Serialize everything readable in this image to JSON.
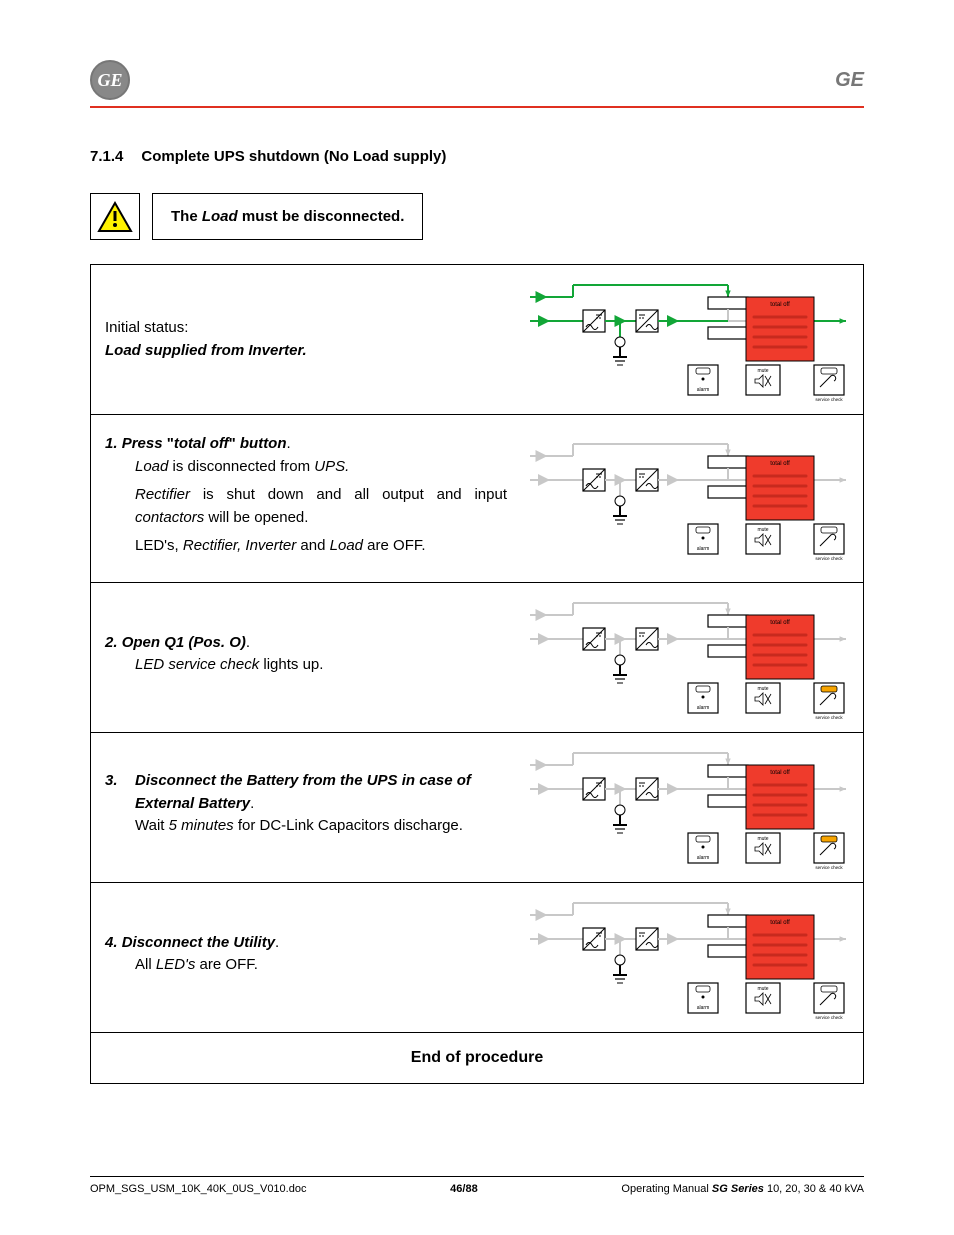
{
  "header": {
    "logo_text": "GE",
    "brand_label": "GE"
  },
  "section": {
    "number": "7.1.4",
    "title": "Complete UPS shutdown (No Load supply)"
  },
  "warning": {
    "pre": "The ",
    "load": "Load",
    "post": " must be disconnected."
  },
  "initial": {
    "line1": "Initial status:",
    "line2": "Load supplied from Inverter."
  },
  "steps": [
    {
      "num": "1.",
      "title_a": "Press ",
      "title_q1": "\"",
      "title_b": "total off",
      "title_q2": "\"",
      "title_c": " button",
      "title_dot": ".",
      "body": [
        {
          "pre": "",
          "it": "Load",
          "mid": " is disconnected from ",
          "it2": "UPS.",
          "post": ""
        },
        {
          "pre": "",
          "it": "Rectifier",
          "mid": " is shut down and all output and input ",
          "it2": "contactors",
          "post": " will be opened."
        },
        {
          "pre": "LED's, ",
          "it": "Rectifier, Inverter",
          "mid": " and ",
          "it2": "Load",
          "post": " are OFF."
        }
      ],
      "diagram": {
        "path1_active": false,
        "path2_active": false,
        "path3_active": false,
        "total_off_active": true,
        "mute_active": false,
        "service_active": false,
        "alarm_active": false
      }
    },
    {
      "num": "2.",
      "title_plain": "Open Q1 (Pos. O)",
      "title_dot": ".",
      "body_simple_pre": "LED service check",
      "body_simple_post": " lights up.",
      "diagram": {
        "path1_active": false,
        "path2_active": false,
        "path3_active": false,
        "total_off_active": true,
        "mute_active": false,
        "service_active": true,
        "alarm_active": false
      }
    },
    {
      "num": "3.",
      "title_long": "Disconnect the Battery from the UPS in case of External Battery",
      "title_dot": ".",
      "body_pre": "Wait ",
      "body_it": "5 minutes",
      "body_post": " for DC-Link Capacitors discharge.",
      "diagram": {
        "path1_active": false,
        "path2_active": false,
        "path3_active": false,
        "total_off_active": true,
        "mute_active": false,
        "service_active": true,
        "alarm_active": false
      }
    },
    {
      "num": "4.",
      "title_plain": "Disconnect the Utility",
      "title_dot": ".",
      "body_pre2": "All ",
      "body_it2": "LED's",
      "body_post2": " are OFF.",
      "diagram": {
        "path1_active": false,
        "path2_active": false,
        "path3_active": false,
        "total_off_active": true,
        "mute_active": false,
        "service_active": false,
        "alarm_active": false,
        "total_off_orange": false
      }
    }
  ],
  "end": "End of procedure",
  "footer": {
    "left": "OPM_SGS_USM_10K_40K_0US_V010.doc",
    "mid": "46/88",
    "right_pre": "Operating Manual ",
    "right_bold": "SG Series",
    "right_post": " 10, 20, 30 & 40 kVA"
  },
  "diagram_labels": {
    "total_off": "total off",
    "mute": "mute",
    "alarm": "alarm",
    "service": "service check"
  },
  "diagram_initial": {
    "path1_active": true,
    "path2_active": true,
    "path3_active": true,
    "total_off_active": true,
    "mute_active": false,
    "service_active": false,
    "alarm_active": false
  },
  "colors": {
    "green": "#12a637",
    "red_block": "#ef3b2c",
    "red_dark": "#c82a1e",
    "gray": "#c8c8c8",
    "black": "#000000",
    "orange": "#f7a400"
  }
}
